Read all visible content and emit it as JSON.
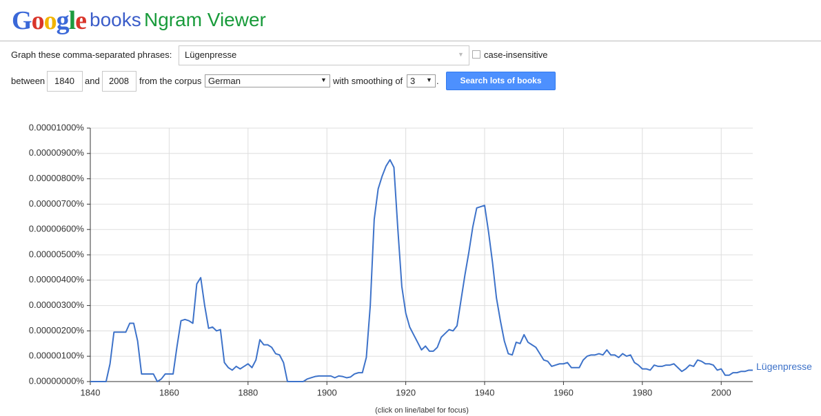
{
  "header": {
    "logo": "Google",
    "product": "books",
    "title": "Ngram Viewer"
  },
  "form": {
    "phrases_label": "Graph these comma-separated phrases:",
    "phrases": "Lügenpresse",
    "case_label": "case-insensitive",
    "between": "between",
    "start_year": "1840",
    "and": "and",
    "end_year": "2008",
    "corpus_label": "from the corpus",
    "corpus": "German",
    "smoothing_label": "with smoothing of",
    "smoothing": "3",
    "period": ".",
    "button": "Search lots of books"
  },
  "chart_data": {
    "type": "line",
    "x": [
      1840,
      1841,
      1842,
      1843,
      1844,
      1845,
      1846,
      1847,
      1848,
      1849,
      1850,
      1851,
      1852,
      1853,
      1854,
      1855,
      1856,
      1857,
      1858,
      1859,
      1860,
      1861,
      1862,
      1863,
      1864,
      1865,
      1866,
      1867,
      1868,
      1869,
      1870,
      1871,
      1872,
      1873,
      1874,
      1875,
      1876,
      1877,
      1878,
      1879,
      1880,
      1881,
      1882,
      1883,
      1884,
      1885,
      1886,
      1887,
      1888,
      1889,
      1890,
      1891,
      1892,
      1893,
      1894,
      1895,
      1896,
      1897,
      1898,
      1899,
      1900,
      1901,
      1902,
      1903,
      1904,
      1905,
      1906,
      1907,
      1908,
      1909,
      1910,
      1911,
      1912,
      1913,
      1914,
      1915,
      1916,
      1917,
      1918,
      1919,
      1920,
      1921,
      1922,
      1923,
      1924,
      1925,
      1926,
      1927,
      1928,
      1929,
      1930,
      1931,
      1932,
      1933,
      1934,
      1935,
      1936,
      1937,
      1938,
      1939,
      1940,
      1941,
      1942,
      1943,
      1944,
      1945,
      1946,
      1947,
      1948,
      1949,
      1950,
      1951,
      1952,
      1953,
      1954,
      1955,
      1956,
      1957,
      1958,
      1959,
      1960,
      1961,
      1962,
      1963,
      1964,
      1965,
      1966,
      1967,
      1968,
      1969,
      1970,
      1971,
      1972,
      1973,
      1974,
      1975,
      1976,
      1977,
      1978,
      1979,
      1980,
      1981,
      1982,
      1983,
      1984,
      1985,
      1986,
      1987,
      1988,
      1989,
      1990,
      1991,
      1992,
      1993,
      1994,
      1995,
      1996,
      1997,
      1998,
      1999,
      2000,
      2001,
      2002,
      2003,
      2004,
      2005,
      2006,
      2007,
      2008
    ],
    "series": [
      {
        "name": "Lügenpresse",
        "color": "#3d72c9",
        "values": [
          0,
          0,
          0,
          0,
          0,
          7e-07,
          1.95e-06,
          1.95e-06,
          1.95e-06,
          1.95e-06,
          2.3e-06,
          2.3e-06,
          1.6e-06,
          3e-07,
          3e-07,
          3e-07,
          3e-07,
          0,
          1e-07,
          3e-07,
          3e-07,
          3e-07,
          1.4e-06,
          2.4e-06,
          2.45e-06,
          2.4e-06,
          2.3e-06,
          3.85e-06,
          4.1e-06,
          3e-06,
          2.1e-06,
          2.15e-06,
          2e-06,
          2.05e-06,
          7.5e-07,
          5.5e-07,
          4.5e-07,
          6e-07,
          5e-07,
          6e-07,
          7e-07,
          5.5e-07,
          8.5e-07,
          1.65e-06,
          1.45e-06,
          1.45e-06,
          1.35e-06,
          1.1e-06,
          1.05e-06,
          7.5e-07,
          0,
          0,
          0,
          0,
          0,
          1e-07,
          1.5e-07,
          2e-07,
          2.2e-07,
          2.2e-07,
          2.2e-07,
          2.2e-07,
          1.5e-07,
          2.2e-07,
          2e-07,
          1.5e-07,
          1.8e-07,
          3e-07,
          3.5e-07,
          3.5e-07,
          9.5e-07,
          3e-06,
          6.4e-06,
          7.6e-06,
          8.1e-06,
          8.5e-06,
          8.75e-06,
          8.45e-06,
          6e-06,
          3.75e-06,
          2.7e-06,
          2.15e-06,
          1.85e-06,
          1.55e-06,
          1.25e-06,
          1.4e-06,
          1.2e-06,
          1.2e-06,
          1.35e-06,
          1.75e-06,
          1.9e-06,
          2.05e-06,
          2e-06,
          2.2e-06,
          3.2e-06,
          4.2e-06,
          5.1e-06,
          6.1e-06,
          6.85e-06,
          6.9e-06,
          6.95e-06,
          5.9e-06,
          4.7e-06,
          3.3e-06,
          2.4e-06,
          1.6e-06,
          1.1e-06,
          1.05e-06,
          1.55e-06,
          1.5e-06,
          1.85e-06,
          1.55e-06,
          1.45e-06,
          1.35e-06,
          1.1e-06,
          8.5e-07,
          8e-07,
          6e-07,
          6.5e-07,
          7e-07,
          7e-07,
          7.5e-07,
          5.5e-07,
          5.5e-07,
          5.5e-07,
          8.5e-07,
          1e-06,
          1.05e-06,
          1.05e-06,
          1.1e-06,
          1.05e-06,
          1.25e-06,
          1.05e-06,
          1.05e-06,
          9.5e-07,
          1.1e-06,
          1e-06,
          1.05e-06,
          7.5e-07,
          6.5e-07,
          5e-07,
          5e-07,
          4.5e-07,
          6.5e-07,
          6e-07,
          6e-07,
          6.5e-07,
          6.5e-07,
          7e-07,
          5.5e-07,
          4e-07,
          5e-07,
          6.5e-07,
          6e-07,
          8.5e-07,
          8e-07,
          7e-07,
          7e-07,
          6.5e-07,
          4.5e-07,
          5e-07,
          2.5e-07,
          2.5e-07,
          3.5e-07,
          3.5e-07,
          4e-07,
          4e-07,
          4.5e-07,
          4.5e-07
        ]
      }
    ],
    "xlim": [
      1840,
      2008
    ],
    "xticks": [
      1840,
      1860,
      1880,
      1900,
      1920,
      1940,
      1960,
      1980,
      2000
    ],
    "ylim": [
      0,
      1e-05
    ],
    "yticks": [
      {
        "value": 0,
        "label": "0.00000000%"
      },
      {
        "value": 1e-06,
        "label": "0.00000100%"
      },
      {
        "value": 2e-06,
        "label": "0.00000200%"
      },
      {
        "value": 3e-06,
        "label": "0.00000300%"
      },
      {
        "value": 4e-06,
        "label": "0.00000400%"
      },
      {
        "value": 5e-06,
        "label": "0.00000500%"
      },
      {
        "value": 6e-06,
        "label": "0.00000600%"
      },
      {
        "value": 7e-06,
        "label": "0.00000700%"
      },
      {
        "value": 8e-06,
        "label": "0.00000800%"
      },
      {
        "value": 9e-06,
        "label": "0.00000900%"
      },
      {
        "value": 1e-05,
        "label": "0.00001000%"
      }
    ],
    "grid": true
  },
  "footer_note": "(click on line/label for focus)"
}
